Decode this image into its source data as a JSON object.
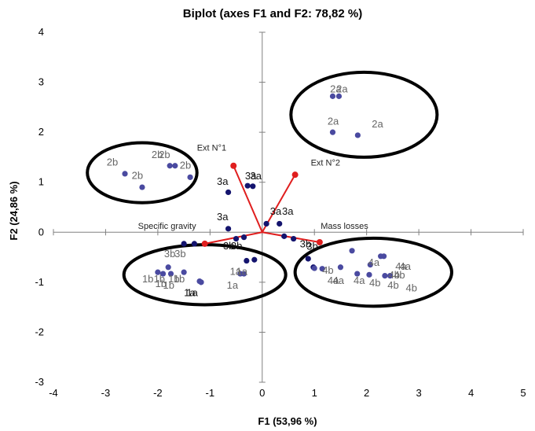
{
  "chart_data": {
    "type": "scatter",
    "title": "Biplot (axes F1 and F2: 78,82 %)",
    "xlabel": "F1 (53,96 %)",
    "ylabel": "F2 (24,86 %)",
    "xlim": [
      -4,
      5
    ],
    "ylim": [
      -3,
      4
    ],
    "xticks": [
      -4,
      -3,
      -2,
      -1,
      0,
      1,
      2,
      3,
      4,
      5
    ],
    "yticks": [
      -3,
      -2,
      -1,
      0,
      1,
      2,
      3,
      4
    ],
    "grid": false,
    "colors": {
      "observations": "#4a4aa0",
      "observations_dark": "#14146e",
      "variables": "#e01e1e",
      "labels": "#666666",
      "labels_dark": "#111111",
      "ellipse": "#000000",
      "axis": "#808080"
    },
    "observations": [
      {
        "label": "2a",
        "x": 1.35,
        "y": 2.72,
        "dark": false
      },
      {
        "label": "2a",
        "x": 1.47,
        "y": 2.72,
        "dark": false
      },
      {
        "label": "2a",
        "x": 1.35,
        "y": 2.0,
        "dark": false
      },
      {
        "label": "2a",
        "x": 1.83,
        "y": 1.94,
        "dark": false
      },
      {
        "label": "2b",
        "x": -2.63,
        "y": 1.17,
        "dark": false
      },
      {
        "label": "2b",
        "x": -2.3,
        "y": 0.9,
        "dark": false
      },
      {
        "label": "2b",
        "x": -1.77,
        "y": 1.33,
        "dark": false
      },
      {
        "label": "2b",
        "x": -1.67,
        "y": 1.33,
        "dark": false
      },
      {
        "label": "2b",
        "x": -1.38,
        "y": 1.1,
        "dark": false
      },
      {
        "label": "3a",
        "x": -0.28,
        "y": 0.93,
        "dark": true
      },
      {
        "label": "3a",
        "x": -0.18,
        "y": 0.92,
        "dark": true
      },
      {
        "label": "3a",
        "x": -0.65,
        "y": 0.8,
        "dark": true
      },
      {
        "label": "3a",
        "x": -0.65,
        "y": 0.07,
        "dark": true
      },
      {
        "label": "3a",
        "x": 0.08,
        "y": 0.17,
        "dark": true
      },
      {
        "label": "3a",
        "x": 0.33,
        "y": 0.17,
        "dark": true
      },
      {
        "label": "3b",
        "x": 0.42,
        "y": -0.08,
        "dark": true
      },
      {
        "label": "3b",
        "x": 0.6,
        "y": -0.13,
        "dark": true
      },
      {
        "label": "3b",
        "x": 0.88,
        "y": -0.53,
        "dark": true
      },
      {
        "label": "3b",
        "x": 0.98,
        "y": -0.7,
        "dark": true
      },
      {
        "label": "3b",
        "x": -0.5,
        "y": -0.13,
        "dark": true
      },
      {
        "label": "3b",
        "x": -0.35,
        "y": -0.1,
        "dark": true
      },
      {
        "label": "3b",
        "x": -0.3,
        "y": -0.57,
        "dark": true
      },
      {
        "label": "3b",
        "x": -0.15,
        "y": -0.55,
        "dark": true
      },
      {
        "label": "3b",
        "x": -1.5,
        "y": -0.23,
        "dark": true
      },
      {
        "label": "3b",
        "x": -1.3,
        "y": -0.23,
        "dark": true
      },
      {
        "label": "1a",
        "x": -0.42,
        "y": -0.83,
        "dark": false
      },
      {
        "label": "1a",
        "x": -0.35,
        "y": -0.83,
        "dark": false
      },
      {
        "label": "1a",
        "x": -1.2,
        "y": -0.98,
        "dark": false
      },
      {
        "label": "1a",
        "x": -1.17,
        "y": -1.0,
        "dark": false
      },
      {
        "label": "1b",
        "x": -1.8,
        "y": -0.7,
        "dark": false
      },
      {
        "label": "1b",
        "x": -1.9,
        "y": -0.83,
        "dark": false
      },
      {
        "label": "1b",
        "x": -1.75,
        "y": -0.83,
        "dark": false
      },
      {
        "label": "1b",
        "x": -2.0,
        "y": -0.8,
        "dark": false
      },
      {
        "label": "1b",
        "x": -1.5,
        "y": -0.8,
        "dark": false
      },
      {
        "label": "4a",
        "x": 1.15,
        "y": -0.73,
        "dark": false
      },
      {
        "label": "4a",
        "x": 1.5,
        "y": -0.7,
        "dark": false
      },
      {
        "label": "4a",
        "x": 1.72,
        "y": -0.37,
        "dark": false
      },
      {
        "label": "4a",
        "x": 1.82,
        "y": -0.83,
        "dark": false
      },
      {
        "label": "4a",
        "x": 2.07,
        "y": -0.65,
        "dark": false
      },
      {
        "label": "4a",
        "x": 2.27,
        "y": -0.48,
        "dark": false
      },
      {
        "label": "4a",
        "x": 2.33,
        "y": -0.48,
        "dark": false
      },
      {
        "label": "4b",
        "x": 1.0,
        "y": -0.72,
        "dark": false
      },
      {
        "label": "4b",
        "x": 2.05,
        "y": -0.85,
        "dark": false
      },
      {
        "label": "4b",
        "x": 2.35,
        "y": -0.87,
        "dark": false
      },
      {
        "label": "4b",
        "x": 2.45,
        "y": -0.87,
        "dark": false
      }
    ],
    "point_labels": [
      {
        "text": "2a",
        "x": 1.3,
        "y": 2.8,
        "dark": false
      },
      {
        "text": "2a",
        "x": 1.42,
        "y": 2.8,
        "dark": false
      },
      {
        "text": "2a",
        "x": 1.25,
        "y": 2.15,
        "dark": false
      },
      {
        "text": "2a",
        "x": 2.1,
        "y": 2.1,
        "dark": false
      },
      {
        "text": "2b",
        "x": -2.98,
        "y": 1.33,
        "dark": false
      },
      {
        "text": "2b",
        "x": -2.5,
        "y": 1.07,
        "dark": false
      },
      {
        "text": "2b",
        "x": -2.12,
        "y": 1.48,
        "dark": false
      },
      {
        "text": "2b",
        "x": -1.98,
        "y": 1.48,
        "dark": false
      },
      {
        "text": "2b",
        "x": -1.58,
        "y": 1.27,
        "dark": false
      },
      {
        "text": "3a",
        "x": -0.33,
        "y": 1.06,
        "dark": true
      },
      {
        "text": "3a",
        "x": -0.23,
        "y": 1.06,
        "dark": true
      },
      {
        "text": "3a",
        "x": -0.87,
        "y": 0.95,
        "dark": true
      },
      {
        "text": "3a",
        "x": -0.87,
        "y": 0.24,
        "dark": true
      },
      {
        "text": "3a",
        "x": 0.15,
        "y": 0.35,
        "dark": true
      },
      {
        "text": "3a",
        "x": 0.38,
        "y": 0.35,
        "dark": true
      },
      {
        "text": "3b",
        "x": 0.72,
        "y": -0.3,
        "dark": true
      },
      {
        "text": "3b",
        "x": 0.85,
        "y": -0.35,
        "dark": true
      },
      {
        "text": "3b",
        "x": -0.75,
        "y": -0.34,
        "dark": true
      },
      {
        "text": "3b",
        "x": -0.6,
        "y": -0.34,
        "dark": true
      },
      {
        "text": "3b",
        "x": -1.88,
        "y": -0.5,
        "dark": false
      },
      {
        "text": "3b",
        "x": -1.68,
        "y": -0.5,
        "dark": false
      },
      {
        "text": "1a",
        "x": -0.62,
        "y": -0.85,
        "dark": false
      },
      {
        "text": "1a",
        "x": -0.5,
        "y": -0.85,
        "dark": false
      },
      {
        "text": "1a",
        "x": -0.68,
        "y": -1.13,
        "dark": false
      },
      {
        "text": "1a",
        "x": -1.5,
        "y": -1.28,
        "dark": true
      },
      {
        "text": "1a",
        "x": -1.45,
        "y": -1.28,
        "dark": true
      },
      {
        "text": "1b",
        "x": -2.3,
        "y": -1.0,
        "dark": false
      },
      {
        "text": "1b",
        "x": -2.08,
        "y": -1.0,
        "dark": false
      },
      {
        "text": "1b",
        "x": -2.05,
        "y": -1.1,
        "dark": false
      },
      {
        "text": "1b",
        "x": -1.9,
        "y": -1.13,
        "dark": false
      },
      {
        "text": "1b",
        "x": -1.8,
        "y": -1.0,
        "dark": false
      },
      {
        "text": "1b",
        "x": -1.7,
        "y": -1.0,
        "dark": false
      },
      {
        "text": "4a",
        "x": 2.55,
        "y": -0.75,
        "dark": false
      },
      {
        "text": "4a",
        "x": 2.63,
        "y": -0.75,
        "dark": false
      },
      {
        "text": "4a",
        "x": 2.03,
        "y": -0.67,
        "dark": false
      },
      {
        "text": "4a",
        "x": 1.75,
        "y": -1.03,
        "dark": false
      },
      {
        "text": "4a",
        "x": 1.25,
        "y": -1.03,
        "dark": false
      },
      {
        "text": "4a",
        "x": 1.35,
        "y": -1.03,
        "dark": false
      },
      {
        "text": "4b",
        "x": 1.15,
        "y": -0.83,
        "dark": false
      },
      {
        "text": "4b",
        "x": 2.42,
        "y": -0.92,
        "dark": false
      },
      {
        "text": "4b",
        "x": 2.52,
        "y": -0.92,
        "dark": false
      },
      {
        "text": "4b",
        "x": 2.05,
        "y": -1.08,
        "dark": false
      },
      {
        "text": "4b",
        "x": 2.4,
        "y": -1.13,
        "dark": false
      },
      {
        "text": "4b",
        "x": 2.75,
        "y": -1.18,
        "dark": false
      }
    ],
    "variables": [
      {
        "name": "Ext N°1",
        "x": -0.55,
        "y": 1.33,
        "label_x": -1.25,
        "label_y": 1.63
      },
      {
        "name": "Ext N°2",
        "x": 0.63,
        "y": 1.15,
        "label_x": 0.93,
        "label_y": 1.33
      },
      {
        "name": "Specific gravity",
        "x": -1.1,
        "y": -0.23,
        "label_x": -2.38,
        "label_y": 0.07
      },
      {
        "name": "Mass losses",
        "x": 1.1,
        "y": -0.2,
        "label_x": 1.12,
        "label_y": 0.07
      }
    ],
    "ellipses": [
      {
        "cx": 1.95,
        "cy": 2.35,
        "rx": 1.4,
        "ry": 0.85
      },
      {
        "cx": -2.3,
        "cy": 1.19,
        "rx": 1.05,
        "ry": 0.6
      },
      {
        "cx": -1.1,
        "cy": -0.85,
        "rx": 1.55,
        "ry": 0.6
      },
      {
        "cx": 2.13,
        "cy": -0.8,
        "rx": 1.5,
        "ry": 0.68
      }
    ]
  }
}
